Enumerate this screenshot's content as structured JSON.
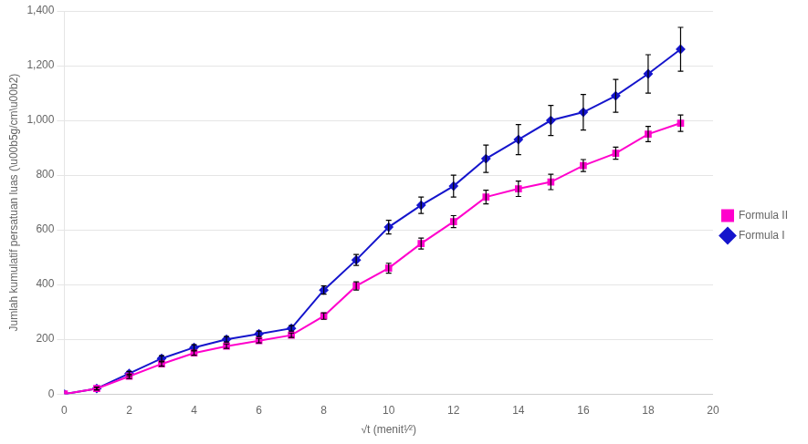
{
  "chart_data": {
    "type": "line",
    "xlabel": "√t (menit¹⁄²)",
    "ylabel": "Jumlah kumulatif persatuan luas (\\u00b5g/cm\\u00b2)",
    "xlim": [
      0,
      20
    ],
    "ylim": [
      0,
      1400
    ],
    "xticks": [
      0,
      2,
      4,
      6,
      8,
      10,
      12,
      14,
      16,
      18,
      20
    ],
    "yticks": [
      0,
      200,
      400,
      600,
      800,
      1000,
      1200,
      1400
    ],
    "grid": "y",
    "legend": "right",
    "series": [
      {
        "name": "Formula II",
        "color": "#FF00CC",
        "marker": "square",
        "x": [
          0,
          1,
          2,
          3,
          4,
          5,
          6,
          7,
          8,
          9,
          10,
          11,
          12,
          13,
          14,
          15,
          16,
          17,
          18,
          19
        ],
        "values": [
          0,
          20,
          65,
          110,
          150,
          175,
          195,
          215,
          285,
          395,
          460,
          550,
          630,
          720,
          750,
          775,
          835,
          880,
          950,
          990
        ],
        "errors": [
          0,
          5,
          8,
          8,
          8,
          8,
          8,
          8,
          12,
          15,
          18,
          20,
          22,
          25,
          28,
          28,
          22,
          22,
          28,
          30
        ]
      },
      {
        "name": "Formula I",
        "color": "#1515CC",
        "marker": "diamond",
        "x": [
          0,
          1,
          2,
          3,
          4,
          5,
          6,
          7,
          8,
          9,
          10,
          11,
          12,
          13,
          14,
          15,
          16,
          17,
          18,
          19
        ],
        "values": [
          0,
          20,
          75,
          130,
          170,
          200,
          220,
          240,
          380,
          490,
          610,
          690,
          760,
          860,
          930,
          1000,
          1030,
          1090,
          1170,
          1260
        ],
        "errors": [
          0,
          5,
          8,
          10,
          10,
          10,
          10,
          10,
          15,
          20,
          25,
          30,
          40,
          50,
          55,
          55,
          65,
          60,
          70,
          80
        ]
      }
    ]
  }
}
